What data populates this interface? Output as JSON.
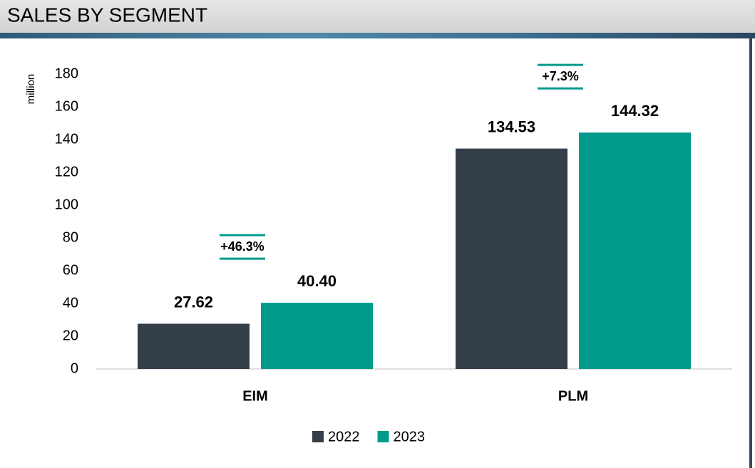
{
  "chart_data": {
    "type": "bar",
    "title": "SALES BY SEGMENT",
    "y_label": "million",
    "categories": [
      "EIM",
      "PLM"
    ],
    "series": [
      {
        "name": "2022",
        "color": "#353f49",
        "values": [
          27.62,
          134.53
        ]
      },
      {
        "name": "2023",
        "color": "#009a8c",
        "values": [
          40.4,
          144.32
        ],
        "value_labels": [
          "40.40",
          "144.32"
        ]
      }
    ],
    "annotations": [
      "+46.3%",
      "+7.3%"
    ],
    "ylim": [
      0,
      180
    ],
    "yticks": [
      0,
      20,
      40,
      60,
      80,
      100,
      120,
      140,
      160,
      180
    ],
    "grid": false,
    "legend": "bottom"
  }
}
